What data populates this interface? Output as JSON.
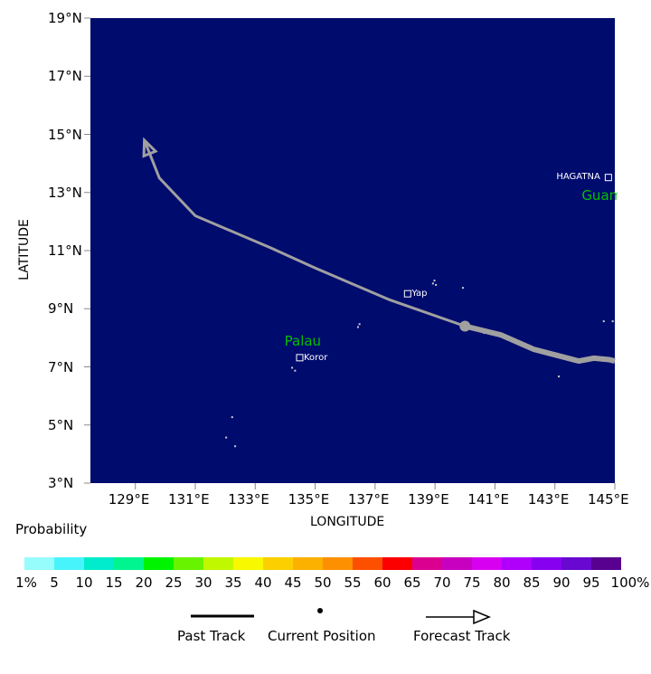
{
  "map": {
    "xlabel": "LONGITUDE",
    "ylabel": "LATITUDE",
    "lat_ticks": [
      "19°N",
      "17°N",
      "15°N",
      "13°N",
      "11°N",
      "9°N",
      "7°N",
      "5°N",
      "3°N"
    ],
    "lon_ticks": [
      "129°E",
      "131°E",
      "133°E",
      "135°E",
      "137°E",
      "139°E",
      "141°E",
      "143°E",
      "145°E"
    ],
    "lon_range": [
      127.5,
      145
    ],
    "lat_range": [
      3,
      19
    ],
    "ocean_color": "#000b6e",
    "track_color": "#a0a0a0",
    "region_labels": [
      {
        "text": "Palau",
        "lon": 134.7,
        "lat": 7.9,
        "color": "#00c000"
      },
      {
        "text": "Guam",
        "lon": 145.1,
        "lat": 12.9,
        "color": "#00c000"
      }
    ],
    "places": [
      {
        "text": "Yap",
        "lon": 138.1,
        "lat": 9.5
      },
      {
        "text": "Koror",
        "lon": 134.5,
        "lat": 7.3
      },
      {
        "text": "HAGATNA",
        "lon": 144.8,
        "lat": 13.5
      }
    ],
    "past_track": [
      [
        145,
        7.2
      ],
      [
        144.8,
        7.25
      ],
      [
        144.3,
        7.3
      ],
      [
        143.8,
        7.2
      ],
      [
        142.3,
        7.6
      ],
      [
        141.2,
        8.1
      ],
      [
        140,
        8.4
      ]
    ],
    "current_position": [
      140,
      8.4
    ],
    "forecast_track": [
      [
        140,
        8.4
      ],
      [
        137.5,
        9.3
      ],
      [
        135,
        10.4
      ],
      [
        133.5,
        11.1
      ],
      [
        131,
        12.2
      ],
      [
        129.8,
        13.5
      ],
      [
        129.3,
        14.8
      ]
    ]
  },
  "probability": {
    "title": "Probability",
    "labels": [
      "1%",
      "5",
      "10",
      "15",
      "20",
      "25",
      "30",
      "35",
      "40",
      "45",
      "50",
      "55",
      "60",
      "65",
      "70",
      "75",
      "80",
      "85",
      "90",
      "95",
      "100%"
    ],
    "colors": [
      "#96fcfc",
      "#48f4fc",
      "#00eccc",
      "#00f490",
      "#00f400",
      "#68f400",
      "#c0f800",
      "#f8f800",
      "#fcd000",
      "#fcb000",
      "#fc9000",
      "#fc5000",
      "#fc0000",
      "#dc0090",
      "#c800c0",
      "#d800f0",
      "#b000fc",
      "#8800f0",
      "#6808d0",
      "#580090"
    ]
  },
  "legend": {
    "past_track": "Past Track",
    "current_position": "Current Position",
    "forecast_track": "Forecast Track"
  }
}
